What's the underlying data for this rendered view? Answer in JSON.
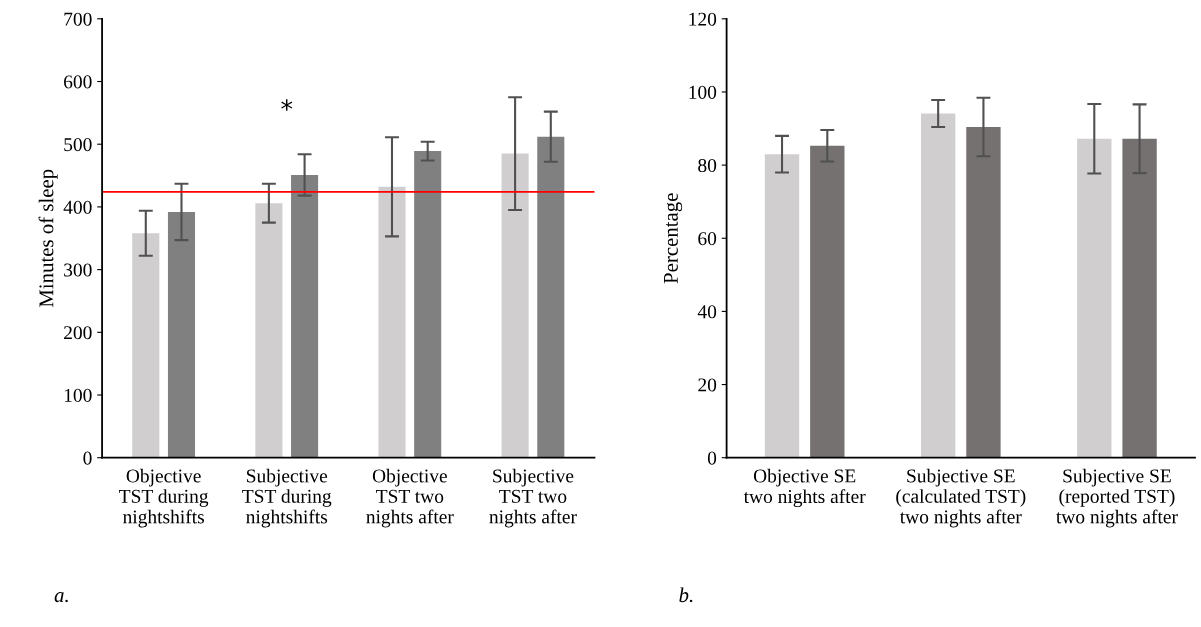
{
  "chart_data": [
    {
      "type": "bar",
      "ylabel": "Minutes of sleep",
      "categories": [
        "Objective\nTST during\nnightshifts",
        "Subjective\nTST during\nnightshifts",
        "Objective\nTST two\nnights after",
        "Subjective\nTST two\nnights after"
      ],
      "series": [
        {
          "color": "#d0cecf",
          "values": [
            358,
            406,
            432,
            485
          ],
          "errors": [
            36,
            31,
            79,
            90
          ]
        },
        {
          "color": "#808080",
          "values": [
            392,
            451,
            489,
            512
          ],
          "errors": [
            45,
            33,
            15,
            40
          ]
        }
      ],
      "ylim": [
        0,
        700
      ],
      "yticks": [
        0,
        100,
        200,
        300,
        400,
        500,
        600,
        700
      ],
      "grid": false,
      "legend": false,
      "ref_lines": [
        {
          "axis": "y",
          "value": 424,
          "color": "#ff0000"
        }
      ],
      "annotations": [
        "*",
        "a."
      ]
    },
    {
      "type": "bar",
      "ylabel": "Percentage",
      "categories": [
        "Objective SE\ntwo nights after",
        "Subjective SE\n(calculated TST)\ntwo nights after",
        "Subjective SE\n(reported TST)\ntwo nights after"
      ],
      "series": [
        {
          "color": "#d0cecf",
          "values": [
            83,
            94.1,
            87.2
          ],
          "errors": [
            5,
            3.7,
            9.5
          ]
        },
        {
          "color": "#767171",
          "values": [
            85.3,
            90.4,
            87.2
          ],
          "errors": [
            4.3,
            8,
            9.4
          ]
        }
      ],
      "ylim": [
        0,
        120
      ],
      "yticks": [
        0,
        20,
        40,
        60,
        80,
        100,
        120
      ],
      "grid": false,
      "legend": false,
      "annotations": [
        "b."
      ]
    }
  ]
}
